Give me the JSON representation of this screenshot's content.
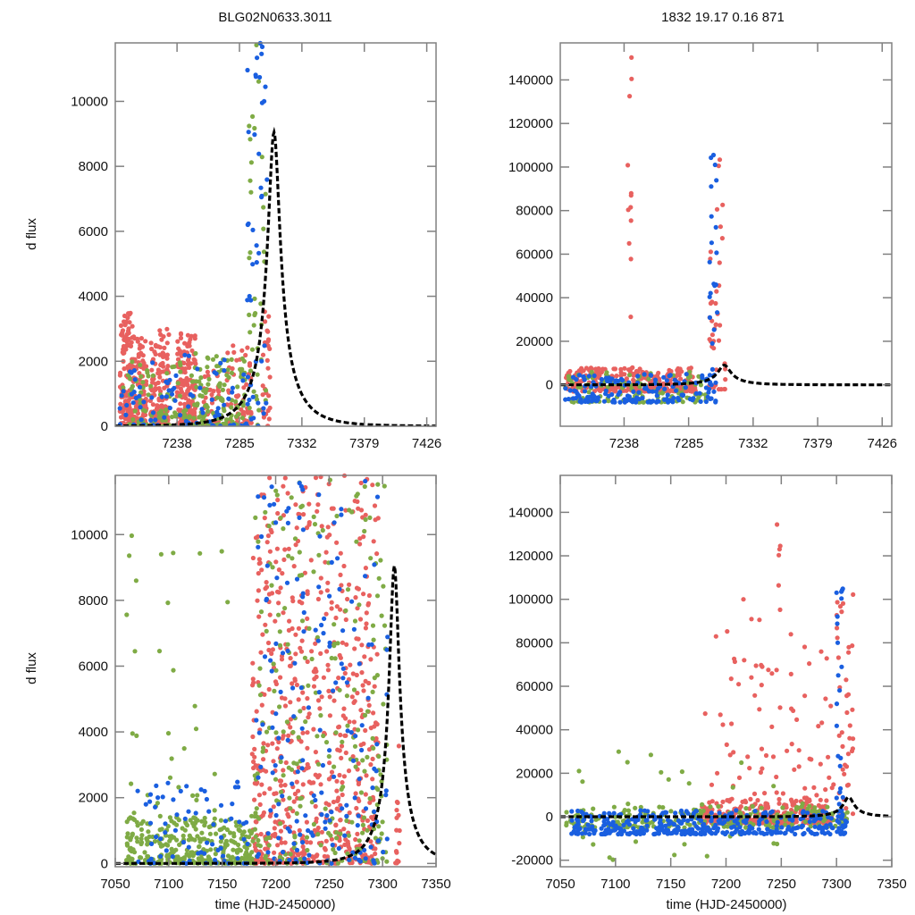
{
  "titles": {
    "left": "BLG02N0633.3011",
    "right": "1832  19.17  0.16  871"
  },
  "colors": {
    "red": "#e8615f",
    "green": "#7fab45",
    "blue": "#1a5fe0",
    "model": "#000000",
    "frame": "#808080"
  },
  "model": {
    "t0": 7311,
    "peak_flux": 9050,
    "baseline_flux": 0,
    "description": "microlensing model fit (dashed black line)"
  },
  "chart_data": [
    {
      "id": "top-left",
      "type": "scatter",
      "title": "BLG02N0633.3011",
      "xlabel": "",
      "ylabel": "d flux",
      "xlim": [
        7191.5,
        7433
      ],
      "ylim": [
        0,
        11800
      ],
      "xticks": [
        7238,
        7285,
        7332,
        7379,
        7426
      ],
      "xtick_labels": [
        "7238",
        "7285",
        "7332",
        "7379",
        "7426"
      ],
      "yticks": [
        0,
        2000,
        4000,
        6000,
        8000,
        10000
      ],
      "ytick_labels": [
        "0",
        "2000",
        "4000",
        "6000",
        "8000",
        "10000"
      ],
      "grid": false,
      "series": [
        {
          "name": "red",
          "color": "#e8615f",
          "clusters": [
            [
              7195,
              7205,
              0,
              3500,
              140
            ],
            [
              7205,
              7215,
              0,
              2800,
              120
            ],
            [
              7218,
              7232,
              0,
              3000,
              150
            ],
            [
              7238,
              7252,
              0,
              3000,
              160
            ],
            [
              7258,
              7270,
              0,
              1800,
              50
            ],
            [
              7275,
              7294,
              0,
              2500,
              70
            ],
            [
              7302,
              7308,
              0,
              4200,
              30
            ]
          ]
        },
        {
          "name": "green",
          "color": "#7fab45",
          "clusters": [
            [
              7195,
              7250,
              0,
              2000,
              90
            ],
            [
              7250,
              7290,
              0,
              2300,
              120
            ],
            [
              7292,
              7305,
              0,
              11800,
              40
            ]
          ]
        },
        {
          "name": "blue",
          "color": "#1a5fe0",
          "clusters": [
            [
              7195,
              7290,
              0,
              2200,
              80
            ],
            [
              7290,
              7306,
              0,
              11800,
              45
            ]
          ]
        }
      ],
      "model_curve": true
    },
    {
      "id": "top-right",
      "type": "scatter",
      "title": "1832  19.17  0.16  871",
      "xlabel": "",
      "ylabel": "",
      "xlim": [
        7191.5,
        7433
      ],
      "ylim": [
        -19000,
        157000
      ],
      "xticks": [
        7238,
        7285,
        7332,
        7379,
        7426
      ],
      "xtick_labels": [
        "7238",
        "7285",
        "7332",
        "7379",
        "7426"
      ],
      "yticks": [
        0,
        20000,
        40000,
        60000,
        80000,
        100000,
        120000,
        140000
      ],
      "ytick_labels": [
        "0",
        "20000",
        "40000",
        "60000",
        "80000",
        "100000",
        "120000",
        "140000"
      ],
      "grid": false,
      "series": [
        {
          "name": "red",
          "color": "#e8615f",
          "clusters": [
            [
              7195,
              7290,
              -3000,
              8000,
              300
            ],
            [
              7240,
              7245,
              20000,
              157000,
              12
            ],
            [
              7300,
              7312,
              -2000,
              105000,
              40
            ]
          ]
        },
        {
          "name": "green",
          "color": "#7fab45",
          "clusters": [
            [
              7195,
              7300,
              -8000,
              6000,
              120
            ]
          ]
        },
        {
          "name": "blue",
          "color": "#1a5fe0",
          "clusters": [
            [
              7195,
              7305,
              -8000,
              5000,
              160
            ],
            [
              7300,
              7306,
              0,
              106000,
              25
            ]
          ]
        }
      ],
      "model_curve": true
    },
    {
      "id": "bottom-left",
      "type": "scatter",
      "title": "",
      "xlabel": "time (HJD-2450000)",
      "ylabel": "d flux",
      "xlim": [
        7050,
        7350
      ],
      "ylim": [
        -100,
        11800
      ],
      "xticks": [
        7050,
        7100,
        7150,
        7200,
        7250,
        7300,
        7350
      ],
      "xtick_labels": [
        "7050",
        "7100",
        "7150",
        "7200",
        "7250",
        "7300",
        "7350"
      ],
      "yticks": [
        0,
        2000,
        4000,
        6000,
        8000,
        10000
      ],
      "ytick_labels": [
        "0",
        "2000",
        "4000",
        "6000",
        "8000",
        "10000"
      ],
      "grid": false,
      "series": [
        {
          "name": "red",
          "color": "#e8615f",
          "clusters": [
            [
              7178,
              7296,
              0,
              11800,
              650
            ],
            [
              7312,
              7316,
              0,
              4000,
              15
            ]
          ]
        },
        {
          "name": "green",
          "color": "#7fab45",
          "clusters": [
            [
              7060,
              7180,
              0,
              1400,
              320
            ],
            [
              7060,
              7180,
              1400,
              10000,
              35
            ],
            [
              7180,
              7305,
              0,
              11800,
              250
            ]
          ]
        },
        {
          "name": "blue",
          "color": "#1a5fe0",
          "clusters": [
            [
              7070,
              7180,
              0,
              2500,
              70
            ],
            [
              7180,
              7306,
              0,
              11800,
              180
            ]
          ]
        }
      ],
      "model_curve": true
    },
    {
      "id": "bottom-right",
      "type": "scatter",
      "title": "",
      "xlabel": "time (HJD-2450000)",
      "ylabel": "",
      "xlim": [
        7050,
        7350
      ],
      "ylim": [
        -23000,
        157000
      ],
      "xticks": [
        7050,
        7100,
        7150,
        7200,
        7250,
        7300,
        7350
      ],
      "xtick_labels": [
        "7050",
        "7100",
        "7150",
        "7200",
        "7250",
        "7300",
        "7350"
      ],
      "yticks": [
        -20000,
        0,
        20000,
        40000,
        60000,
        80000,
        100000,
        120000,
        140000
      ],
      "ytick_labels": [
        "-20000",
        "0",
        "20000",
        "40000",
        "60000",
        "80000",
        "100000",
        "120000",
        "140000"
      ],
      "grid": false,
      "series": [
        {
          "name": "red",
          "color": "#e8615f",
          "clusters": [
            [
              7178,
              7296,
              -3000,
              8000,
              350
            ],
            [
              7180,
              7300,
              8000,
              100000,
              80
            ],
            [
              7245,
              7250,
              95000,
              157000,
              6
            ],
            [
              7300,
              7315,
              -2000,
              105000,
              40
            ]
          ]
        },
        {
          "name": "green",
          "color": "#7fab45",
          "clusters": [
            [
              7055,
              7310,
              -5000,
              5000,
              220
            ],
            [
              7060,
              7300,
              -20000,
              30000,
              30
            ]
          ]
        },
        {
          "name": "blue",
          "color": "#1a5fe0",
          "clusters": [
            [
              7060,
              7310,
              -8000,
              3000,
              380
            ],
            [
              7300,
              7306,
              0,
              106000,
              25
            ]
          ]
        }
      ],
      "model_curve": true
    }
  ]
}
